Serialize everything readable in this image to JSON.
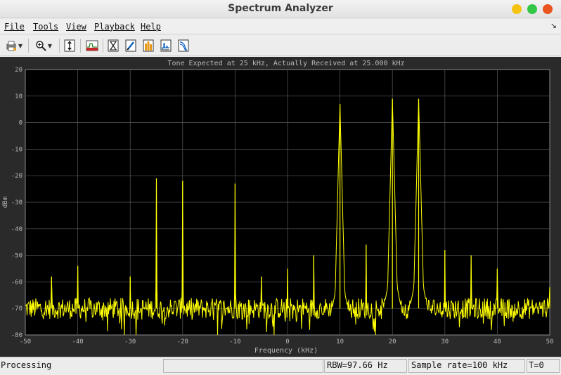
{
  "window": {
    "title": "Spectrum Analyzer"
  },
  "window_controls": [
    "minimize",
    "maximize",
    "close"
  ],
  "colors": {
    "close": "#e95420",
    "minimize": "#f5c211",
    "maximize": "#33c748",
    "trace": "#ffff00",
    "plot_bg": "#000000",
    "frame_bg": "#2a2a2a"
  },
  "menu": [
    "File",
    "Tools",
    "View",
    "Playback",
    "Help"
  ],
  "toolbar": [
    "print-icon",
    "zoom-in-icon",
    "scale-axes-icon",
    "spectrum-settings-icon",
    "cursor-measurements-icon",
    "peak-finder-icon",
    "channel-measurements-icon",
    "distortion-measurements-icon",
    "ccdf-icon"
  ],
  "plot": {
    "title": "Tone Expected at 25 kHz, Actually Received at 25.000 kHz",
    "xlabel": "Frequency (kHz)",
    "ylabel": "dBm"
  },
  "chart_data": {
    "type": "line",
    "title": "Tone Expected at 25 kHz, Actually Received at 25.000 kHz",
    "xlabel": "Frequency (kHz)",
    "ylabel": "dBm",
    "xlim": [
      -50,
      50
    ],
    "ylim": [
      -80,
      20
    ],
    "xticks": [
      -50,
      -40,
      -30,
      -20,
      -10,
      0,
      10,
      20,
      30,
      40,
      50
    ],
    "yticks": [
      20,
      10,
      0,
      -10,
      -20,
      -30,
      -40,
      -50,
      -60,
      -70,
      -80
    ],
    "grid": true,
    "noise_floor_dbm": -70,
    "peaks": [
      {
        "x": -45,
        "y": -58
      },
      {
        "x": -40,
        "y": -54
      },
      {
        "x": -30,
        "y": -58
      },
      {
        "x": -25,
        "y": -21
      },
      {
        "x": -20,
        "y": -22
      },
      {
        "x": -10,
        "y": -23
      },
      {
        "x": -5,
        "y": -58
      },
      {
        "x": 0,
        "y": -55
      },
      {
        "x": 5,
        "y": -50
      },
      {
        "x": 10,
        "y": 7
      },
      {
        "x": 15,
        "y": -46
      },
      {
        "x": 20,
        "y": 9
      },
      {
        "x": 25,
        "y": 9
      },
      {
        "x": 30,
        "y": -48
      },
      {
        "x": 35,
        "y": -50
      },
      {
        "x": 40,
        "y": -55
      },
      {
        "x": 50,
        "y": -62
      }
    ]
  },
  "status": {
    "state": "Processing",
    "rbw": "RBW=97.66 Hz",
    "sample_rate": "Sample rate=100 kHz",
    "time": "T=0"
  }
}
